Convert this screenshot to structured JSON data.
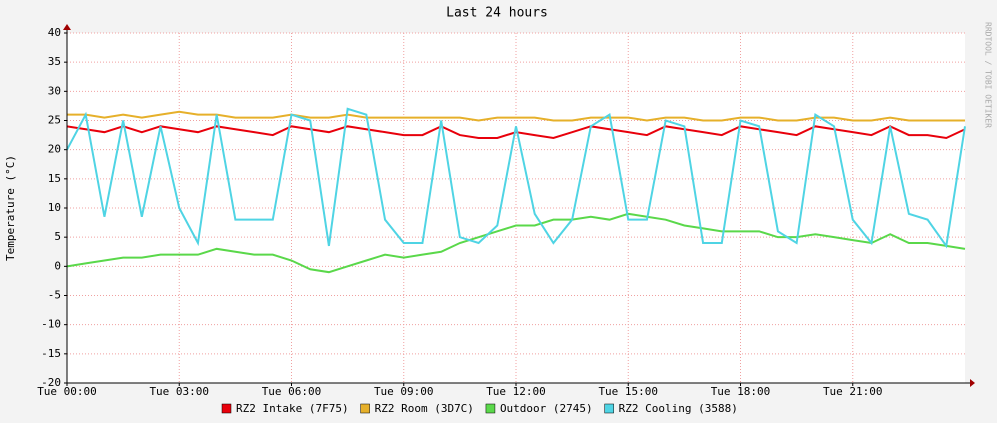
{
  "chart_data": {
    "type": "line",
    "title": "Last 24 hours",
    "y_label": "Temperature (°C)",
    "credit": "RRDTOOL / TOBI OETIKER",
    "x": [
      0,
      0.5,
      1,
      1.5,
      2,
      2.5,
      3,
      3.5,
      4,
      4.5,
      5,
      5.5,
      6,
      6.5,
      7,
      7.5,
      8,
      8.5,
      9,
      9.5,
      10,
      10.5,
      11,
      11.5,
      12,
      12.5,
      13,
      13.5,
      14,
      14.5,
      15,
      15.5,
      16,
      16.5,
      17,
      17.5,
      18,
      18.5,
      19,
      19.5,
      20,
      20.5,
      21,
      21.5,
      22,
      22.5,
      23,
      23.5,
      24
    ],
    "xlim": [
      0,
      24
    ],
    "xticks": [
      {
        "value": 0,
        "label": "Tue 00:00"
      },
      {
        "value": 3,
        "label": "Tue 03:00"
      },
      {
        "value": 6,
        "label": "Tue 06:00"
      },
      {
        "value": 9,
        "label": "Tue 09:00"
      },
      {
        "value": 12,
        "label": "Tue 12:00"
      },
      {
        "value": 15,
        "label": "Tue 15:00"
      },
      {
        "value": 18,
        "label": "Tue 18:00"
      },
      {
        "value": 21,
        "label": "Tue 21:00"
      }
    ],
    "ylim": [
      -20,
      40
    ],
    "yticks": [
      -20,
      -15,
      -10,
      -5,
      0,
      5,
      10,
      15,
      20,
      25,
      30,
      35,
      40
    ],
    "grid": true,
    "series": [
      {
        "name": "RZ2 Intake (7F75)",
        "color": "#e8000b",
        "values": [
          24,
          23.5,
          23,
          24,
          23,
          24,
          23.5,
          23,
          24,
          23.5,
          23,
          22.5,
          24,
          23.5,
          23,
          24,
          23.5,
          23,
          22.5,
          22.5,
          24,
          22.5,
          22,
          22,
          23,
          22.5,
          22,
          23,
          24,
          23.5,
          23,
          22.5,
          24,
          23.5,
          23,
          22.5,
          24,
          23.5,
          23,
          22.5,
          24,
          23.5,
          23,
          22.5,
          24,
          22.5,
          22.5,
          22,
          23.5
        ]
      },
      {
        "name": "RZ2 Room (3D7C)",
        "color": "#e6b02a",
        "values": [
          26,
          26,
          25.5,
          26,
          25.5,
          26,
          26.5,
          26,
          26,
          25.5,
          25.5,
          25.5,
          26,
          25.5,
          25.5,
          26,
          25.5,
          25.5,
          25.5,
          25.5,
          25.5,
          25.5,
          25,
          25.5,
          25.5,
          25.5,
          25,
          25,
          25.5,
          25.5,
          25.5,
          25,
          25.5,
          25.5,
          25,
          25,
          25.5,
          25.5,
          25,
          25,
          25.5,
          25.5,
          25,
          25,
          25.5,
          25,
          25,
          25,
          25
        ]
      },
      {
        "name": "Outdoor (2745)",
        "color": "#5ad84a",
        "values": [
          0,
          0.5,
          1,
          1.5,
          1.5,
          2,
          2,
          2,
          3,
          2.5,
          2,
          2,
          1,
          -0.5,
          -1,
          0,
          1,
          2,
          1.5,
          2,
          2.5,
          4,
          5,
          6,
          7,
          7,
          8,
          8,
          8.5,
          8,
          9,
          8.5,
          8,
          7,
          6.5,
          6,
          6,
          6,
          5,
          5,
          5.5,
          5,
          4.5,
          4,
          5.5,
          4,
          4,
          3.5,
          3
        ]
      },
      {
        "name": "RZ2 Cooling (3588)",
        "color": "#4fd4e4",
        "values": [
          20,
          26,
          8.5,
          25,
          8.5,
          24,
          10,
          4,
          26,
          8,
          8,
          8,
          26,
          25,
          3.5,
          27,
          26,
          8,
          4,
          4,
          25,
          5,
          4,
          7,
          24,
          9,
          4,
          8,
          24,
          26,
          8,
          8,
          25,
          24,
          4,
          4,
          25,
          24,
          6,
          4,
          26,
          24,
          8,
          4,
          24,
          9,
          8,
          3.5,
          24
        ]
      }
    ]
  }
}
